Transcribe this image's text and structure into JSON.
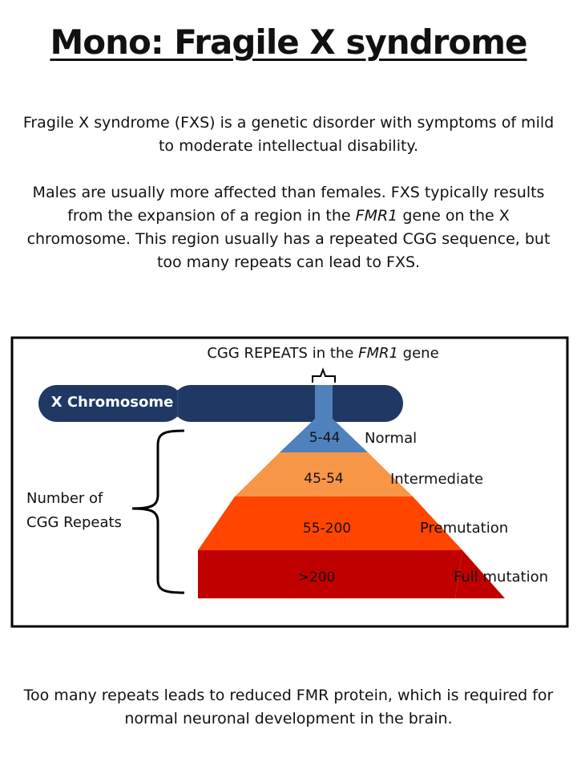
{
  "title": "Mono: Fragile X syndrome",
  "intro": {
    "p1": "Fragile X syndrome (FXS) is a genetic disorder with symptoms of mild to moderate intellectual disability.",
    "p2_before": "Males are usually more affected than females. FXS typically results from the expansion of a region in the ",
    "p2_gene": "FMR1",
    "p2_after": " gene on the X chromosome. This region usually has a repeated CGG sequence, but too many repeats can lead to FXS."
  },
  "diagram": {
    "header_before": "CGG REPEATS in the ",
    "header_gene": "FMR1",
    "header_after": " gene",
    "chromosome_label": "X Chromosome",
    "axis_label_line1": "Number of",
    "axis_label_line2": "CGG Repeats",
    "tiers": [
      {
        "range": "5-44",
        "category": "Normal",
        "color": "#4f81bd"
      },
      {
        "range": "45-54",
        "category": "Intermediate",
        "color": "#f79646"
      },
      {
        "range": "55-200",
        "category": "Premutation",
        "color": "#ff4500"
      },
      {
        "range": ">200",
        "category": "Full mutation",
        "color": "#c00000"
      }
    ],
    "chromosome_color": "#1f3864"
  },
  "conclusion": "Too many repeats leads to reduced FMR protein, which is required for normal neuronal development in the brain."
}
